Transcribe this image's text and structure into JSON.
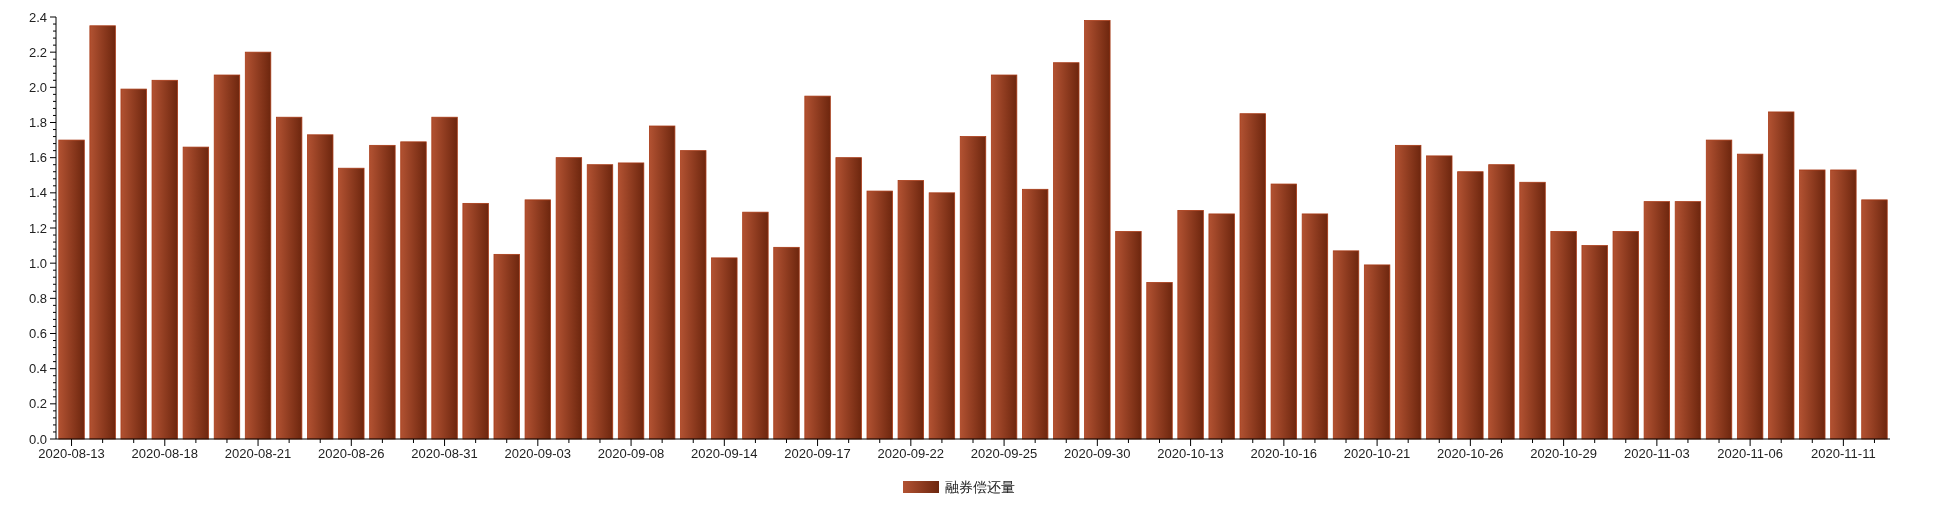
{
  "chart_data": {
    "type": "bar",
    "categories": [
      "2020-08-13",
      null,
      null,
      "2020-08-18",
      null,
      null,
      "2020-08-21",
      null,
      null,
      "2020-08-26",
      null,
      null,
      "2020-08-31",
      null,
      null,
      "2020-09-03",
      null,
      null,
      "2020-09-08",
      null,
      null,
      "2020-09-14",
      null,
      null,
      "2020-09-17",
      null,
      null,
      "2020-09-22",
      null,
      null,
      "2020-09-25",
      null,
      null,
      "2020-09-30",
      null,
      null,
      "2020-10-13",
      null,
      null,
      "2020-10-16",
      null,
      null,
      "2020-10-21",
      null,
      null,
      "2020-10-26",
      null,
      null,
      "2020-10-29",
      null,
      null,
      "2020-11-03",
      null,
      null,
      "2020-11-06",
      null,
      null,
      "2020-11-11",
      null
    ],
    "series": [
      {
        "name": "融券偿还量",
        "color": "#a83a16",
        "values": [
          1.7,
          2.35,
          1.99,
          2.04,
          1.66,
          2.07,
          2.2,
          1.83,
          1.73,
          1.54,
          1.67,
          1.69,
          1.83,
          1.34,
          1.05,
          1.36,
          1.6,
          1.56,
          1.57,
          1.78,
          1.64,
          1.03,
          1.29,
          1.09,
          1.95,
          1.6,
          1.41,
          1.47,
          1.4,
          1.72,
          2.07,
          1.42,
          2.14,
          2.38,
          1.18,
          0.89,
          1.3,
          1.28,
          1.85,
          1.45,
          1.28,
          1.07,
          0.99,
          1.67,
          1.61,
          1.52,
          1.56,
          1.46,
          1.18,
          1.1,
          1.18,
          1.35,
          1.35,
          1.7,
          1.62,
          1.86,
          1.53,
          1.53,
          1.36
        ]
      }
    ],
    "ylim": [
      0,
      2.4
    ],
    "yticks": [
      {
        "value": 0,
        "label": "0.0"
      },
      {
        "value": 0.2,
        "label": "0.2"
      },
      {
        "value": 0.4,
        "label": "0.4"
      },
      {
        "value": 0.6,
        "label": "0.6"
      },
      {
        "value": 0.8,
        "label": "0.8"
      },
      {
        "value": 1,
        "label": "1.0"
      },
      {
        "value": 1.2,
        "label": "1.2"
      },
      {
        "value": 1.4,
        "label": "1.4"
      },
      {
        "value": 1.6,
        "label": "1.6"
      },
      {
        "value": 1.8,
        "label": "1.8"
      },
      {
        "value": 2,
        "label": "2.0"
      },
      {
        "value": 2.2,
        "label": "2.2"
      },
      {
        "value": 2.4,
        "label": "2.4"
      }
    ],
    "legend": "bottom",
    "grid": false
  }
}
